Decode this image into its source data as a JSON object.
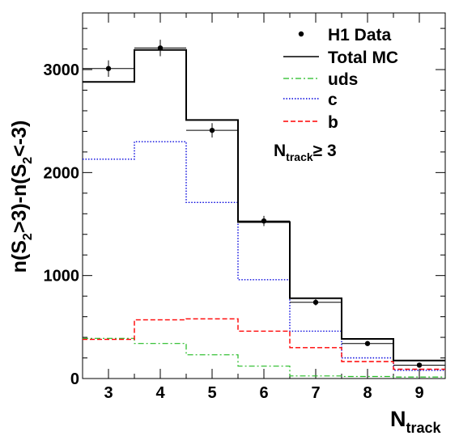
{
  "chart_data": {
    "type": "histogram",
    "xlabel": {
      "main": "N",
      "sub": "track"
    },
    "ylabel": {
      "p1": "n(S",
      "s1": "2",
      "p2": ">3)-n(S",
      "s2": "2",
      "p3": "<-3)"
    },
    "xlim": [
      2.5,
      9.5
    ],
    "ylim": [
      0,
      3550
    ],
    "x_ticks": [
      "3",
      "4",
      "5",
      "6",
      "7",
      "8",
      "9"
    ],
    "y_ticks": [
      "0",
      "1000",
      "2000",
      "3000"
    ],
    "annotation": {
      "main": "N",
      "sub": "track",
      "rest": "≥ 3"
    },
    "bins": [
      3,
      4,
      5,
      6,
      7,
      8,
      9
    ],
    "data_points": {
      "name": "H1 Data",
      "values": [
        3010,
        3210,
        2410,
        1530,
        740,
        340,
        130
      ],
      "errors": [
        80,
        80,
        70,
        50,
        30,
        20,
        15
      ]
    },
    "series": [
      {
        "name": "Total MC",
        "color": "#000000",
        "style": "solid",
        "values": [
          2880,
          3190,
          2510,
          1520,
          780,
          385,
          175
        ]
      },
      {
        "name": "uds",
        "color": "#22bb22",
        "style": "dashdot",
        "values": [
          390,
          340,
          230,
          120,
          25,
          20,
          15
        ]
      },
      {
        "name": "c",
        "color": "#0000dd",
        "style": "dotted",
        "values": [
          2130,
          2300,
          1710,
          960,
          460,
          200,
          80
        ]
      },
      {
        "name": "b",
        "color": "#ff0000",
        "style": "dashed",
        "values": [
          380,
          570,
          580,
          460,
          300,
          165,
          90
        ]
      }
    ]
  }
}
